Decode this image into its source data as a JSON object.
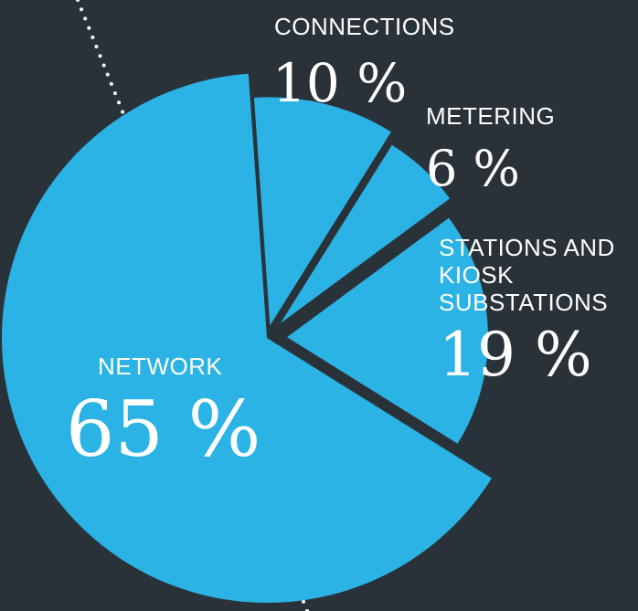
{
  "chart_data": {
    "type": "pie",
    "categories": [
      "CONNECTIONS",
      "METERING",
      "STATIONS AND KIOSK SUBSTATIONS",
      "NETWORK"
    ],
    "values": [
      10,
      6,
      19,
      65
    ],
    "value_labels": [
      "10 %",
      "6 %",
      "19 %",
      "65 %"
    ],
    "color": "#2ab3e4"
  }
}
